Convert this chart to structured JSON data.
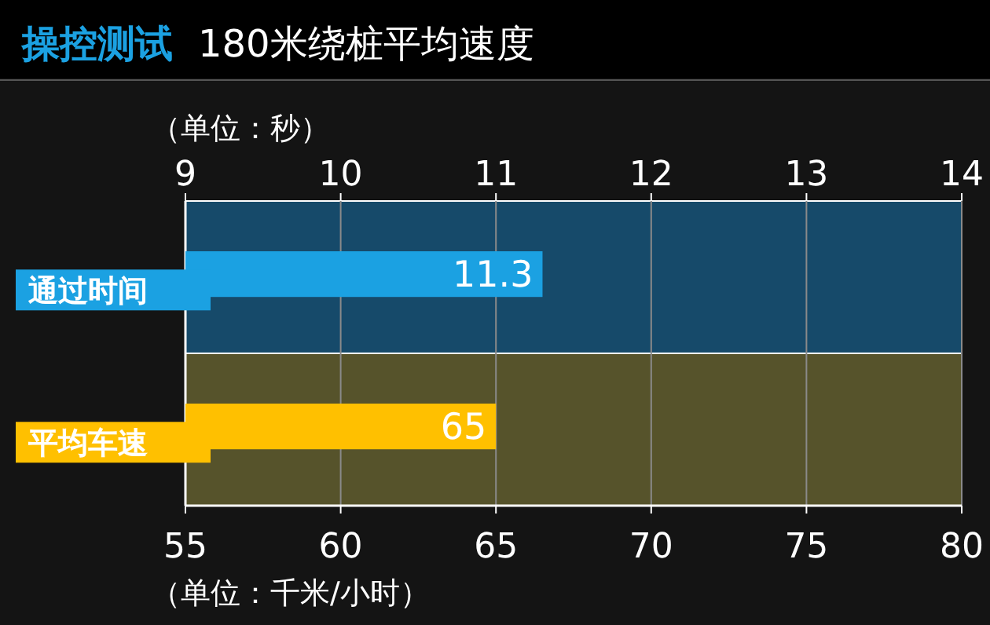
{
  "chart_data": {
    "type": "bar",
    "orientation": "horizontal",
    "title": "操控测试",
    "subtitle": "180米绕桩平均速度",
    "categories": [
      "通过时间",
      "平均车速"
    ],
    "series": [
      {
        "color": "#1ba1e2",
        "axis": "x2",
        "values": [
          11.3,
          null
        ]
      },
      {
        "color": "#ffc000",
        "values": [
          null,
          65
        ]
      }
    ],
    "x2label": "（单位：秒）",
    "x2lim": [
      9,
      14
    ],
    "x2ticks": [
      9,
      10,
      11,
      12,
      13,
      14
    ],
    "xlabel": "（单位：千米/小时）",
    "xlim": [
      55,
      80
    ],
    "xticks": [
      55,
      60,
      65,
      70,
      75,
      80
    ],
    "bands": [
      {
        "axis": "x2",
        "from": 9,
        "to": 14,
        "color": "#164a6a"
      },
      {
        "axis": "x",
        "from": 55,
        "to": 80,
        "color": "#56532b"
      }
    ],
    "grid": "x",
    "data_labels": true
  }
}
